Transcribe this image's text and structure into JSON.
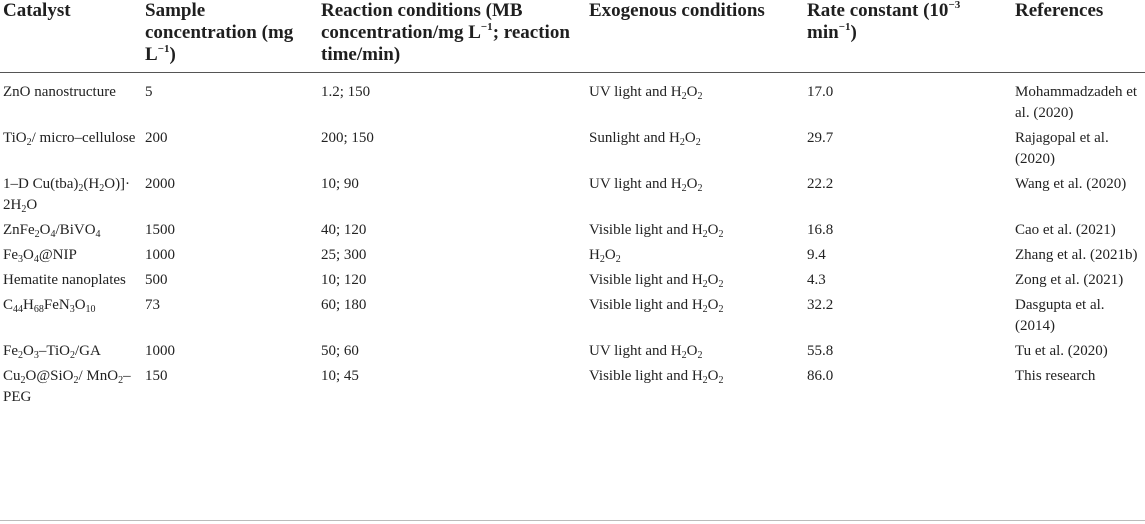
{
  "header": {
    "catalyst": "Catalyst",
    "sample_concentration": "Sample concentration (mg L<sup>−1</sup>)",
    "reaction_conditions": "Reaction conditions (MB concentration/mg L<sup>−1</sup>; reaction time/min)",
    "exogenous_conditions": "Exogenous conditions",
    "rate_constant": "Rate constant (10<sup>−3</sup> min<sup>−1</sup>)",
    "references": "References"
  },
  "rows": [
    {
      "catalyst": "ZnO nanostructure",
      "sample": "5",
      "reaction": "1.2; 150",
      "exogenous": "UV light and H<sub>2</sub>O<sub>2</sub>",
      "rate": "17.0",
      "reference": "Mohammadzadeh et al. (2020)"
    },
    {
      "catalyst": "TiO<sub>2</sub>/ micro–cellulose",
      "sample": "200",
      "reaction": "200; 150",
      "exogenous": "Sunlight and H<sub>2</sub>O<sub>2</sub>",
      "rate": "29.7",
      "reference": "Rajagopal et al. (2020)"
    },
    {
      "catalyst": "1–D Cu(tba)<sub>2</sub>(H<sub>2</sub>O)]· 2H<sub>2</sub>O",
      "sample": "2000",
      "reaction": "10; 90",
      "exogenous": "UV light and H<sub>2</sub>O<sub>2</sub>",
      "rate": "22.2",
      "reference": "Wang et al. (2020)"
    },
    {
      "catalyst": "ZnFe<sub>2</sub>O<sub>4</sub>/BiVO<sub>4</sub>",
      "sample": "1500",
      "reaction": "40; 120",
      "exogenous": "Visible light and H<sub>2</sub>O<sub>2</sub>",
      "rate": "16.8",
      "reference": "Cao et al. (2021)"
    },
    {
      "catalyst": "Fe<sub>3</sub>O<sub>4</sub>@NIP",
      "sample": "1000",
      "reaction": "25; 300",
      "exogenous": "H<sub>2</sub>O<sub>2</sub>",
      "rate": "9.4",
      "reference": "Zhang et al. (2021b)"
    },
    {
      "catalyst": "Hematite nanoplates",
      "sample": "500",
      "reaction": "10; 120",
      "exogenous": "Visible light and H<sub>2</sub>O<sub>2</sub>",
      "rate": "4.3",
      "reference": "Zong et al. (2021)"
    },
    {
      "catalyst": "C<sub>44</sub>H<sub>68</sub>FeN<sub>3</sub>O<sub>10</sub>",
      "sample": "73",
      "reaction": "60; 180",
      "exogenous": "Visible light and H<sub>2</sub>O<sub>2</sub>",
      "rate": "32.2",
      "reference": "Dasgupta et al. (2014)"
    },
    {
      "catalyst": "Fe<sub>2</sub>O<sub>3</sub>–TiO<sub>2</sub>/GA",
      "sample": "1000",
      "reaction": "50; 60",
      "exogenous": "UV light and H<sub>2</sub>O<sub>2</sub>",
      "rate": "55.8",
      "reference": "Tu et al. (2020)"
    },
    {
      "catalyst": "Cu<sub>2</sub>O@SiO<sub>2</sub>/ MnO<sub>2</sub>–PEG",
      "sample": "150",
      "reaction": "10; 45",
      "exogenous": "Visible light and H<sub>2</sub>O<sub>2</sub>",
      "rate": "86.0",
      "reference": "This research"
    }
  ]
}
